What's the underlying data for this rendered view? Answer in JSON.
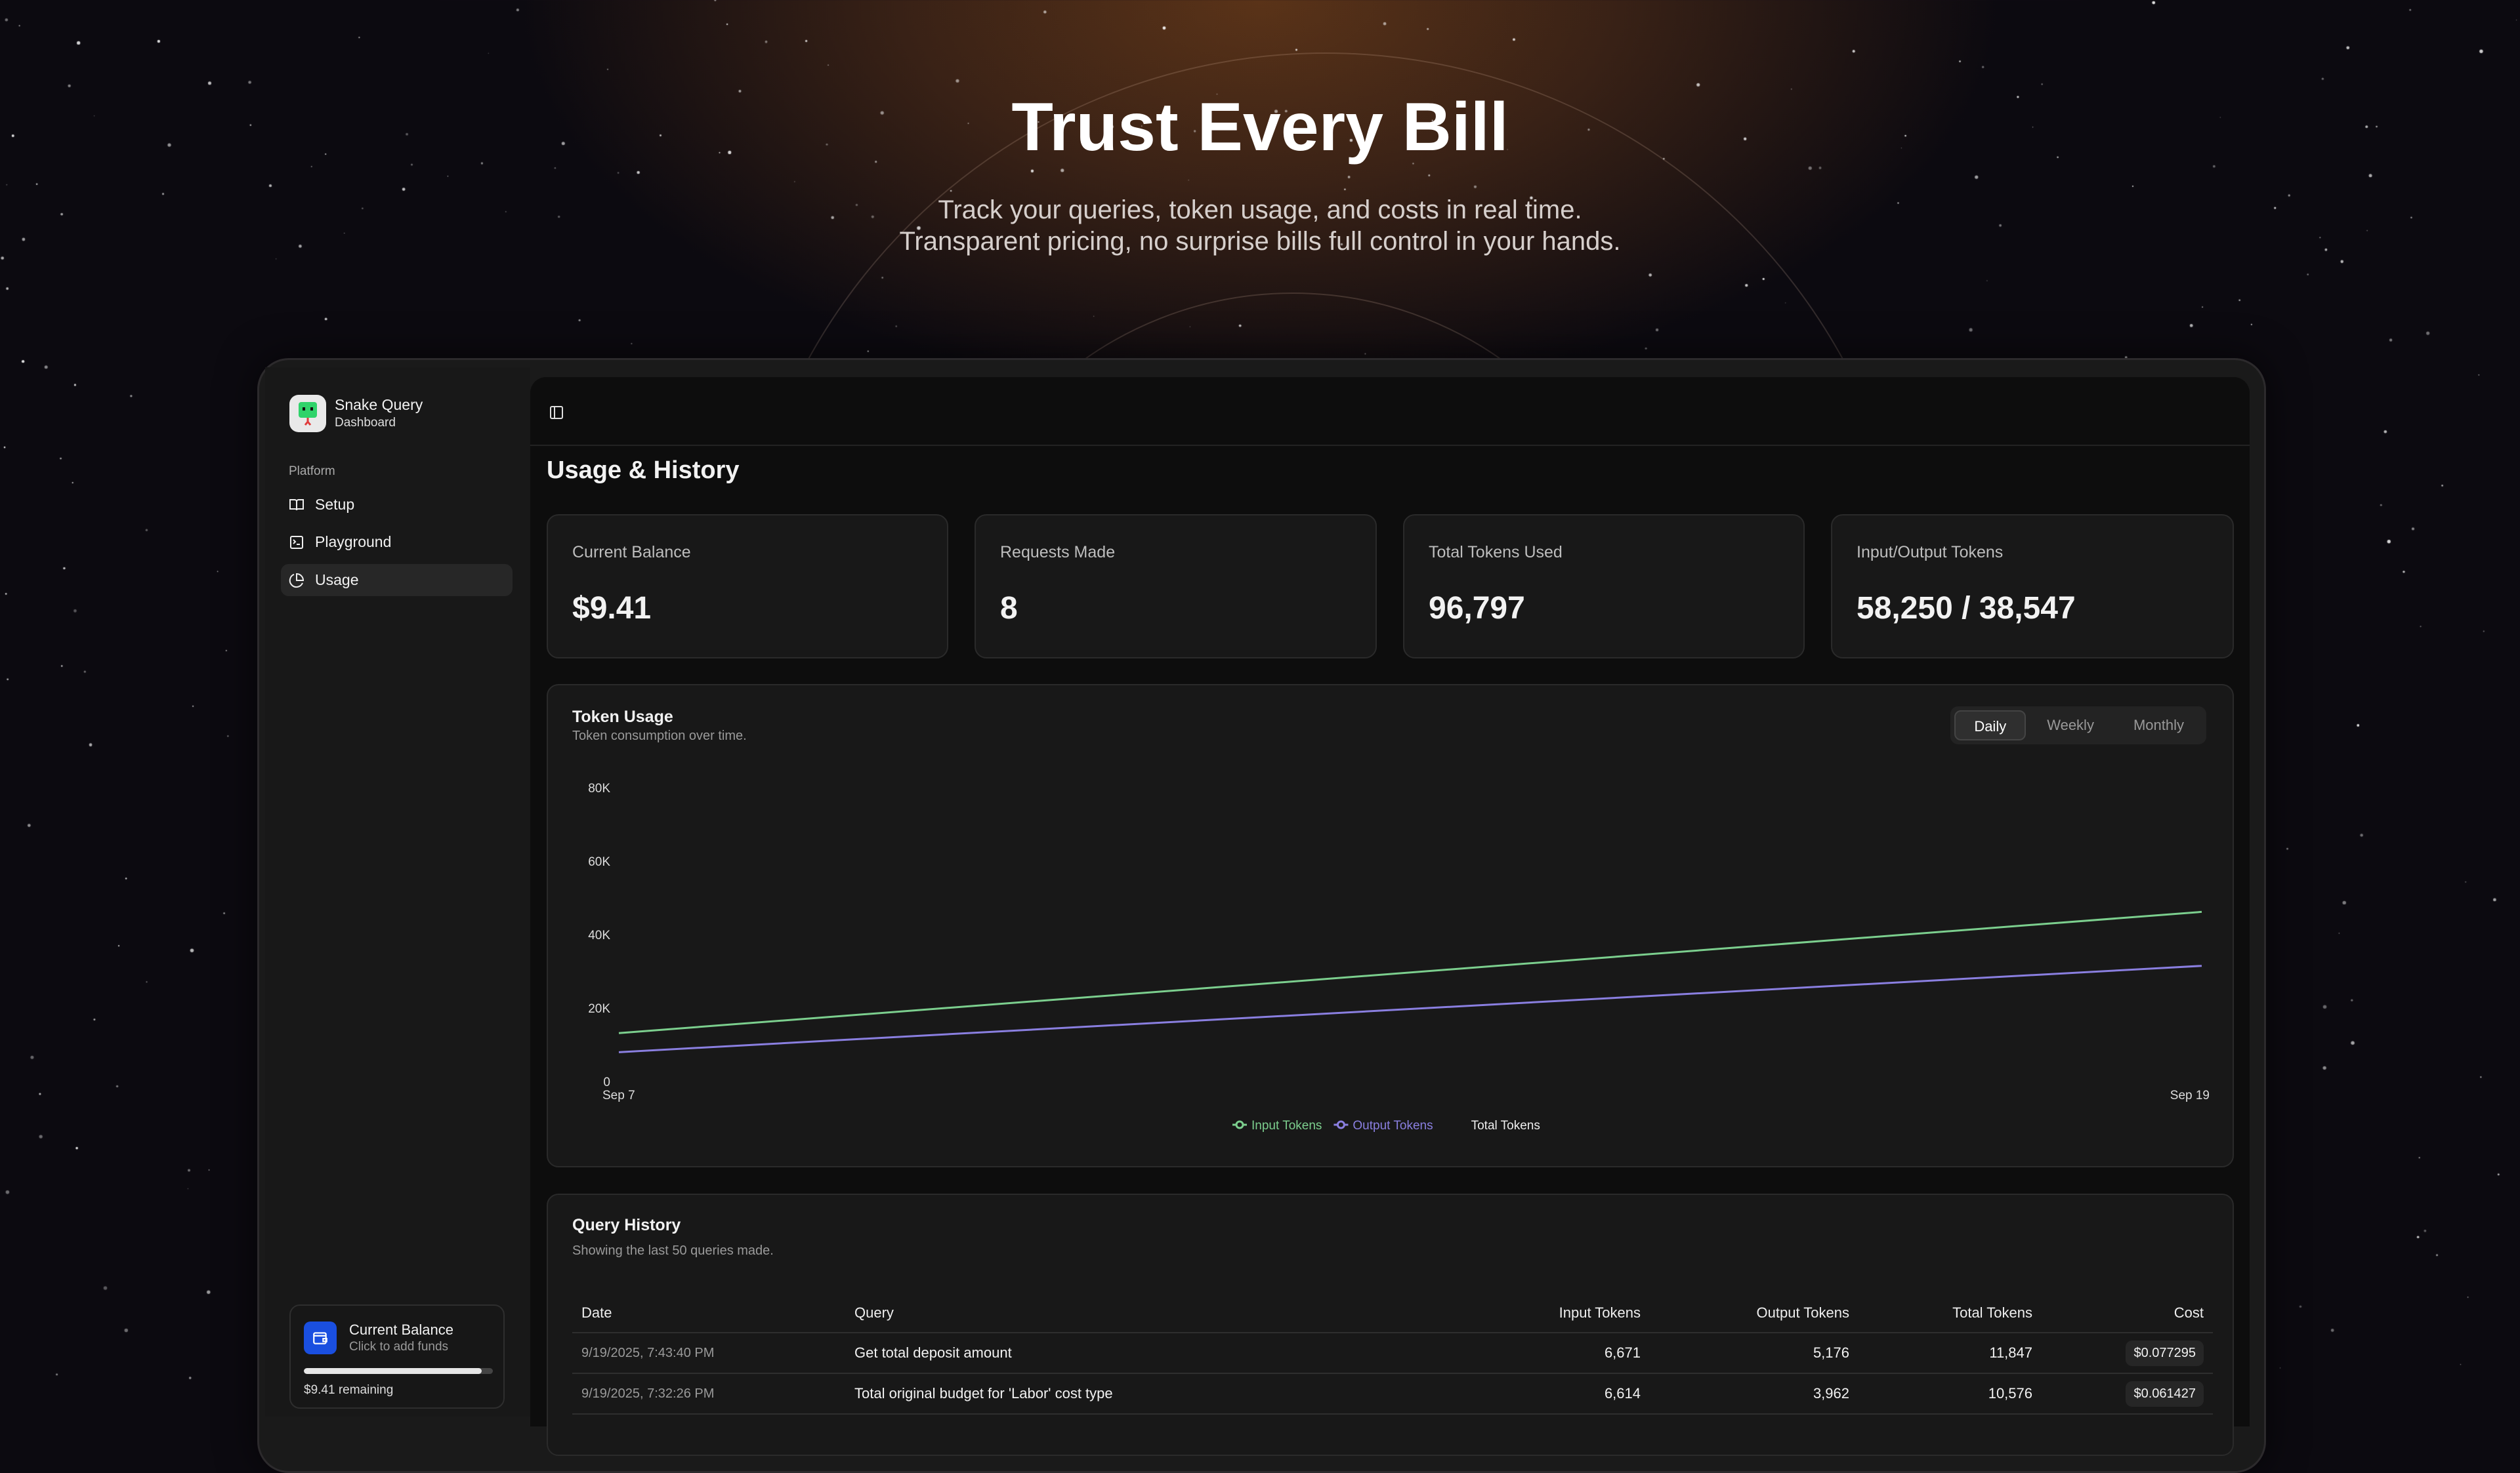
{
  "hero": {
    "title": "Trust Every Bill",
    "subtitle_line1": "Track your queries, token usage, and costs in real time.",
    "subtitle_line2": "Transparent pricing, no surprise bills full control in your hands."
  },
  "sidebar": {
    "brand": "Snake Query",
    "brand_sub": "Dashboard",
    "section": "Platform",
    "items": [
      {
        "label": "Setup",
        "icon": "book-open-icon"
      },
      {
        "label": "Playground",
        "icon": "terminal-icon"
      },
      {
        "label": "Usage",
        "icon": "pie-chart-icon",
        "active": true
      }
    ],
    "balance": {
      "title": "Current Balance",
      "subtitle": "Click to add funds",
      "remaining": "$9.41 remaining",
      "fill_percent": 94,
      "icon": "wallet-icon",
      "accent": "#1a4fe0"
    }
  },
  "main": {
    "title": "Usage & History",
    "stats": [
      {
        "label": "Current Balance",
        "value": "$9.41"
      },
      {
        "label": "Requests Made",
        "value": "8"
      },
      {
        "label": "Total Tokens Used",
        "value": "96,797"
      },
      {
        "label": "Input/Output Tokens",
        "value": "58,250 / 38,547"
      }
    ],
    "chart": {
      "title": "Token Usage",
      "subtitle": "Token consumption over time.",
      "ranges": [
        "Daily",
        "Weekly",
        "Monthly"
      ],
      "selected_range": "Daily"
    },
    "history": {
      "title": "Query History",
      "subtitle": "Showing the last 50 queries made.",
      "columns": [
        "Date",
        "Query",
        "Input Tokens",
        "Output Tokens",
        "Total Tokens",
        "Cost"
      ],
      "rows": [
        [
          "9/19/2025, 7:43:40 PM",
          "Get total deposit amount",
          "6,671",
          "5,176",
          "11,847",
          "$0.077295"
        ],
        [
          "9/19/2025, 7:32:26 PM",
          "Total original budget for 'Labor' cost type",
          "6,614",
          "3,962",
          "10,576",
          "$0.061427"
        ]
      ]
    }
  },
  "chart_data": {
    "type": "line",
    "x": [
      "Sep 7",
      "Sep 19"
    ],
    "ylim": [
      0,
      80000
    ],
    "yticks": [
      "0",
      "20K",
      "40K",
      "60K",
      "80K"
    ],
    "grid": false,
    "legend": "bottom",
    "series": [
      {
        "name": "Input Tokens",
        "color": "#7ccf8e",
        "values": [
          13000,
          46000
        ]
      },
      {
        "name": "Output Tokens",
        "color": "#8a7fe0",
        "values": [
          7800,
          31300
        ]
      }
    ],
    "legend_extra": "Total Tokens"
  }
}
